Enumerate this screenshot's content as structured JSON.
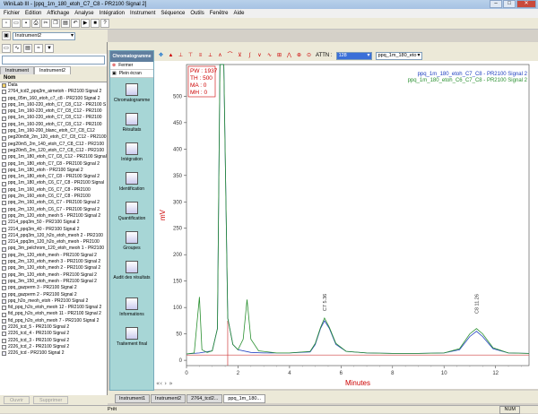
{
  "window": {
    "title": "WiniLab III - [ppq_1m_180_etoh_C7_C8 - PR2100 Signal 2]"
  },
  "menu": [
    "Fichier",
    "Edition",
    "Affichage",
    "Analyse",
    "Intégration",
    "Instrument",
    "Séquence",
    "Outils",
    "Fenêtre",
    "Aide"
  ],
  "toolbar2": {
    "instrument": "Instrument2"
  },
  "left_panel": {
    "tabs": [
      "Instrument",
      "Instrument2"
    ],
    "column_header": "Nom",
    "rows": [
      "Data",
      "2764_tcd2_ppq3m_airnetoh - PR2100 Signal 2",
      "ppq_05m_160_etoh_c7_c8 - PR2100 Signal 2",
      "ppq_1m_160-220_etoh_C7_C8_C12 - PR2100 S",
      "ppq_1m_160-220_etoh_C7_C8_C12 - PR2100",
      "ppq_1m_160-220_etoh_C7_C8_C12 - PR2100",
      "ppq_1m_160-200_etoh_C7_C8_C12 - PR2100",
      "ppq_1m_160-200_blanc_etoh_C7_C8_C12",
      "peg20m5lt_2m_120_etoh_C7_C8_C12 - PR2100",
      "peg20m5_2m_140_etoh_C7_C8_C12 - PR2100",
      "peg20m5_2m_120_etoh_C7_C8_C12 - PR2100",
      "ppq_1m_180_etoh_C7_C8_C12 - PR2100 Signal",
      "ppq_1m_180_etoh_C7_C8 - PR2100 Signal 2",
      "ppq_1m_180_etoh - PR2100 Signal 2",
      "ppq_1m_180_etoh_C7_C8 - PR2100 Signal 2",
      "ppq_1m_180_etoh_C6_C7_C8 - PR2100 Signal",
      "ppq_1m_160_etoh_C6_C7_C8 - PR2100",
      "ppq_2m_160_etoh_C6_C7_C8 - PR2100",
      "ppq_2m_160_etoh_C6_C7 - PR2100 Signal 2",
      "ppq_2m_120_etoh_C6_C7 - PR2100 Signal 2",
      "ppq_2m_120_etoh_meoh 5 - PR2100 Signal 2",
      "2214_ppq3m_50 - PR2100 Signal 2",
      "2214_ppq3m_40 - PR2100 Signal 2",
      "2214_ppq3m_120_h2o_etoh_meoh 2 - PR2100",
      "2214_ppq3m_120_h2o_etoh_meoh - PR2100",
      "ppq_3m_pelchrom_120_etoh_meoh 1 - PR2100",
      "ppq_2m_120_etoh_meoh - PR2100 Signal 2",
      "ppq_2m_120_etoh_meoh 3 - PR2100 Signal 2",
      "ppq_3m_120_etoh_meoh 2 - PR2100 Signal 2",
      "ppq_3m_120_etoh_meoh - PR2100 Signal 2",
      "ppq_3m_150_etoh_meoh - PR2100 Signal 2",
      "ppq_gazperm 3 - PR2100 Signal 2",
      "ppq_gazperm 2 - PR2100 Signal 2",
      "ppq_h2o_meoh_etoh - PR2100 Signal 2",
      "fid_ppq_h2o_etoh_meoh 12 - PR2100 Signal 2",
      "fid_ppq_h2o_etoh_meoh 11 - PR2100 Signal 2",
      "fid_ppq_h2o_etoh_meoh 7 - PR2100 Signal 2",
      "2226_tcd_5 - PR2100 Signal 2",
      "2226_tcd_4 - PR2100 Signal 2",
      "2226_tcd_3 - PR2100 Signal 2",
      "2226_tcd_2 - PR2100 Signal 2",
      "2226_tcd - PR2100 Signal 2"
    ],
    "btn_open": "Ouvrir",
    "btn_delete": "Supprimer"
  },
  "nav": {
    "header": "Chromatogramme",
    "close": "Fermer",
    "fullscreen": "Plein écran",
    "items": [
      "Chromatogramme",
      "Résultats",
      "Intégration",
      "Identification",
      "Quantification",
      "Groupes",
      "Audit des résultats",
      "Informations",
      "Traitement final"
    ]
  },
  "chart_toolbar": {
    "attn_label": "ATTN :",
    "attn_value": "128",
    "sample": "ppq_1m_180_eto"
  },
  "tabs_bottom": [
    "Instrument1",
    "Instrument2",
    "2764_tcd2...",
    "ppq_1m_180..."
  ],
  "status": {
    "left": "Prêt",
    "right": "NUM"
  },
  "chart_data": {
    "type": "line",
    "xlabel": "Minutes",
    "ylabel": "mV",
    "xlim": [
      0,
      13.3
    ],
    "ylim": [
      -10,
      560
    ],
    "xticks": [
      0,
      2,
      4,
      6,
      8,
      10,
      12
    ],
    "yticks": [
      0,
      50,
      100,
      150,
      200,
      250,
      300,
      350,
      400,
      450,
      500
    ],
    "params": [
      "PW : 1937",
      "TH : 500",
      "MA : 0",
      "MH : 0"
    ],
    "annotations": [
      {
        "text": "C7 5.36",
        "x": 5.36,
        "y": 90
      },
      {
        "text": "C8 11.26",
        "x": 11.26,
        "y": 85
      }
    ],
    "legend": [
      "ppq_1m_180_etoh_C7_C8 - PR2100 Signal 2",
      "ppq_1m_180_etoh_C6_C7_C8 - PR2100 Signal 2"
    ],
    "series": [
      {
        "name": "ppq_1m_180_etoh_C7_C8 - PR2100 Signal 2",
        "color": "#2040c0",
        "points": [
          [
            0,
            12
          ],
          [
            0.5,
            14
          ],
          [
            1.0,
            18
          ],
          [
            1.2,
            60
          ],
          [
            1.3,
            560
          ],
          [
            1.45,
            560
          ],
          [
            1.6,
            80
          ],
          [
            1.8,
            30
          ],
          [
            2.0,
            20
          ],
          [
            2.5,
            15
          ],
          [
            3.0,
            14
          ],
          [
            4.0,
            14
          ],
          [
            4.8,
            16
          ],
          [
            5.0,
            30
          ],
          [
            5.2,
            60
          ],
          [
            5.36,
            75
          ],
          [
            5.55,
            60
          ],
          [
            5.8,
            30
          ],
          [
            6.2,
            17
          ],
          [
            7,
            14
          ],
          [
            8,
            13
          ],
          [
            9,
            13
          ],
          [
            10,
            14
          ],
          [
            10.6,
            20
          ],
          [
            11.0,
            45
          ],
          [
            11.26,
            55
          ],
          [
            11.5,
            45
          ],
          [
            11.9,
            22
          ],
          [
            12.5,
            14
          ],
          [
            13.3,
            13
          ]
        ]
      },
      {
        "name": "ppq_1m_180_etoh_C6_C7_C8 - PR2100 Signal 2",
        "color": "#2a9030",
        "points": [
          [
            0,
            12
          ],
          [
            0.3,
            14
          ],
          [
            0.5,
            120
          ],
          [
            0.6,
            20
          ],
          [
            0.8,
            15
          ],
          [
            1.0,
            18
          ],
          [
            1.2,
            60
          ],
          [
            1.3,
            560
          ],
          [
            1.45,
            560
          ],
          [
            1.6,
            80
          ],
          [
            1.8,
            30
          ],
          [
            2.0,
            20
          ],
          [
            2.2,
            40
          ],
          [
            2.35,
            115
          ],
          [
            2.5,
            40
          ],
          [
            2.8,
            18
          ],
          [
            3.5,
            14
          ],
          [
            4.0,
            14
          ],
          [
            4.8,
            17
          ],
          [
            5.0,
            32
          ],
          [
            5.2,
            62
          ],
          [
            5.36,
            80
          ],
          [
            5.55,
            62
          ],
          [
            5.8,
            32
          ],
          [
            6.2,
            17
          ],
          [
            7,
            14
          ],
          [
            8,
            13
          ],
          [
            9,
            13
          ],
          [
            10,
            14
          ],
          [
            10.6,
            22
          ],
          [
            11.0,
            50
          ],
          [
            11.26,
            60
          ],
          [
            11.5,
            50
          ],
          [
            11.9,
            24
          ],
          [
            12.5,
            14
          ],
          [
            13.3,
            13
          ]
        ]
      },
      {
        "name": "",
        "color": "#d04040",
        "points": [
          [
            0,
            10
          ],
          [
            1.5,
            10
          ],
          [
            4,
            10
          ],
          [
            6,
            10
          ],
          [
            8,
            10
          ],
          [
            10,
            10
          ],
          [
            12,
            10
          ],
          [
            13.3,
            10
          ]
        ]
      }
    ]
  }
}
